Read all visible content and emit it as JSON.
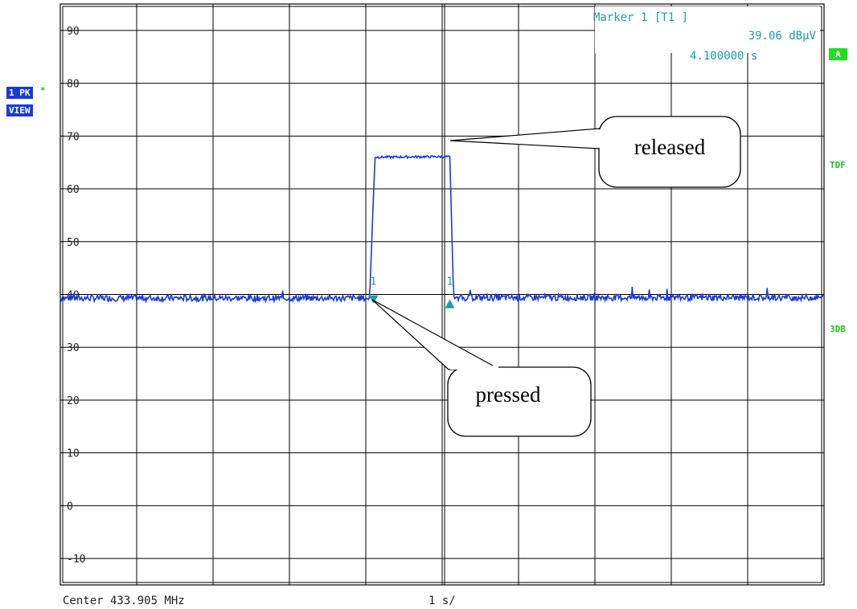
{
  "chart_data": {
    "type": "line",
    "title": "",
    "xlabel": "",
    "ylabel": "",
    "x_range_s": [
      0,
      10
    ],
    "ylim": [
      -15,
      95
    ],
    "y_tick_labels": [
      "90",
      "80",
      "70",
      "60",
      "50",
      "40",
      "30",
      "20",
      "10",
      "0",
      "-10"
    ],
    "y_tick_values": [
      90,
      80,
      70,
      60,
      50,
      40,
      30,
      20,
      10,
      0,
      -10
    ],
    "grid": true,
    "series": [
      {
        "x": [
          0,
          4.0,
          4.05,
          4.12,
          5.05,
          5.1,
          5.15,
          10
        ],
        "y": [
          39.3,
          39.3,
          39.2,
          66.0,
          66.1,
          66.0,
          39.4,
          39.4
        ],
        "noise_band_dB": 0.6
      }
    ],
    "markers": [
      {
        "label": "1",
        "x": 4.1,
        "y": 39.06
      },
      {
        "label": "1",
        "x": 5.1,
        "y": 38.3
      }
    ],
    "annotations": [
      {
        "text": "released"
      },
      {
        "text": "pressed"
      }
    ]
  },
  "marker_readout": {
    "title": "Marker 1 [T1 ]",
    "level": "39.06 dBµV",
    "time": "4.100000 s"
  },
  "footer": {
    "center": "Center 433.905 MHz",
    "span": "1 s/"
  },
  "side": {
    "trace_label": "1 PK",
    "trace_star": "*",
    "trace_mode": "VIEW",
    "badge_a": "A",
    "tdf": "TDF",
    "db3": "3DB"
  },
  "colors": {
    "trace": "#1a3ad6",
    "marker": "#18a0a0",
    "grid": "#000000",
    "side_green": "#20c020"
  }
}
